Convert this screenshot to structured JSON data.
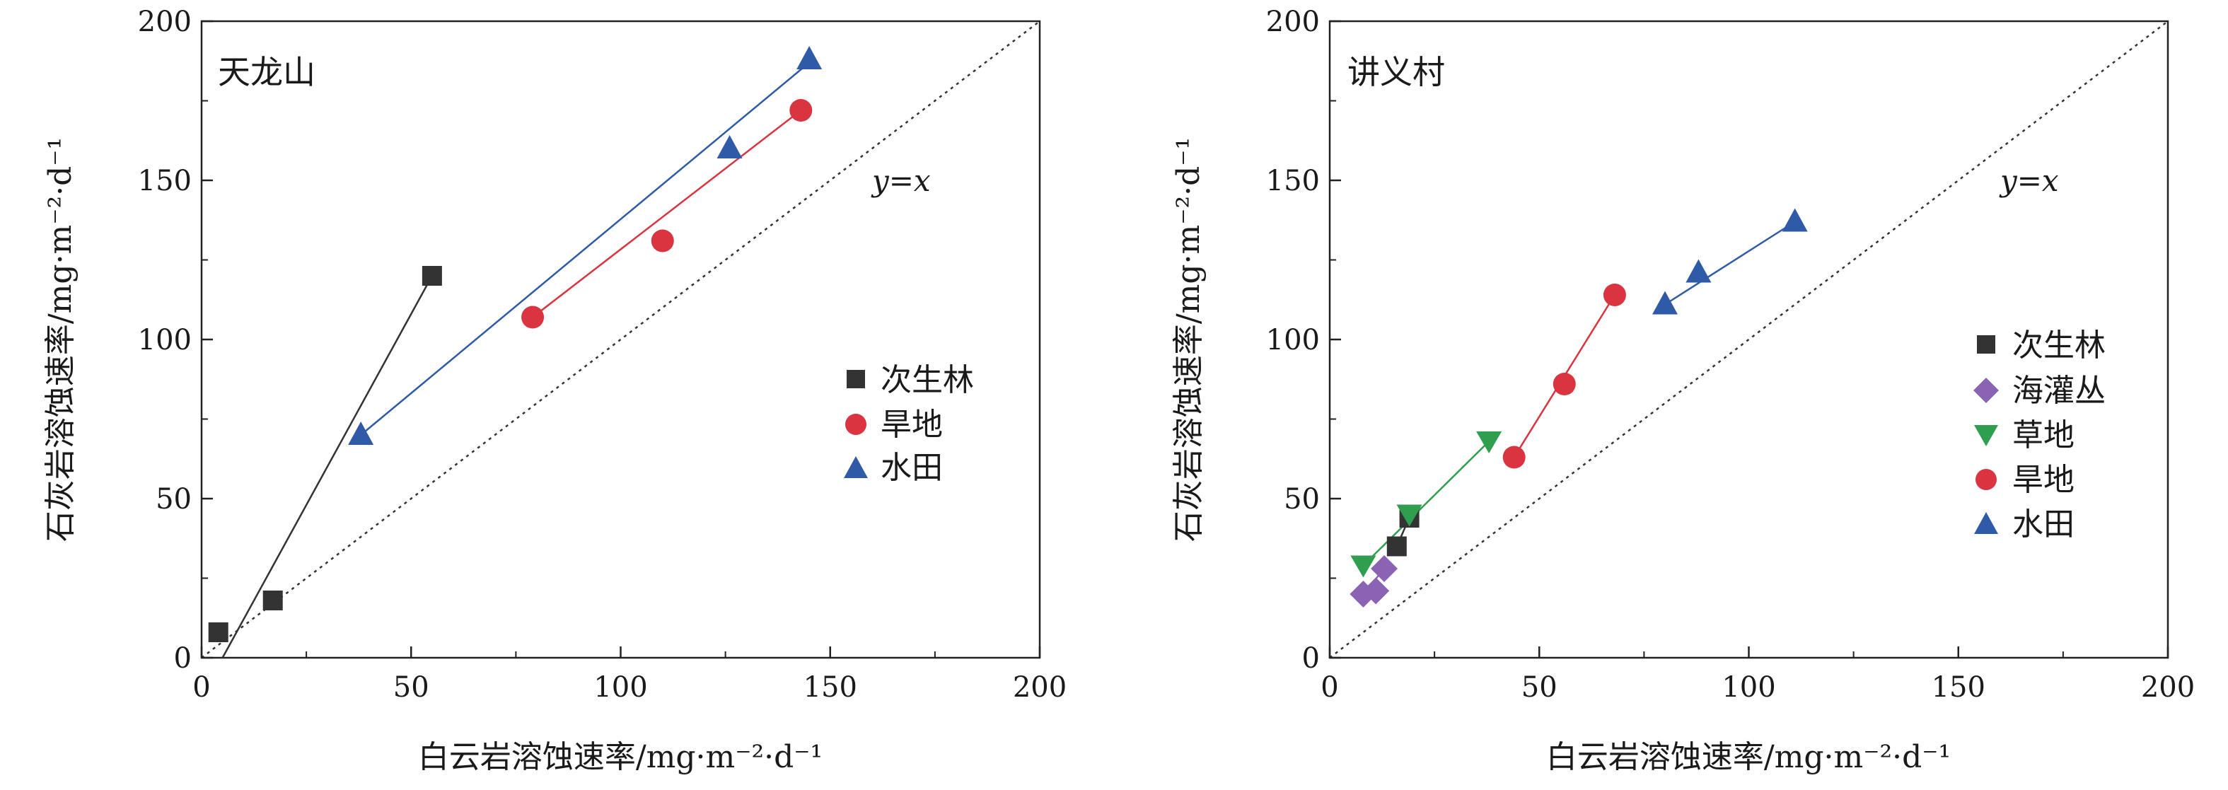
{
  "chart_data": [
    {
      "type": "scatter",
      "panel_title": "天龙山",
      "xlabel": "白云岩溶蚀速率/mg·m⁻²·d⁻¹",
      "ylabel": "石灰岩溶蚀速率/mg·m⁻²·d⁻¹",
      "xlim": [
        0,
        200
      ],
      "ylim": [
        0,
        200
      ],
      "xticks": [
        "0",
        "50",
        "100",
        "150",
        "200"
      ],
      "yticks": [
        "0",
        "50",
        "100",
        "150",
        "200"
      ],
      "reference_line": {
        "label": "y=x",
        "label_position": [
          160,
          150
        ]
      },
      "legend_position": "right-middle",
      "series": [
        {
          "name": "次生林",
          "marker": "square",
          "color": "#333333",
          "line_color": "#333333",
          "points": [
            [
              4,
              8
            ],
            [
              17,
              18
            ],
            [
              55,
              120
            ]
          ],
          "fit": [
            [
              5,
              0
            ],
            [
              55,
              120
            ]
          ]
        },
        {
          "name": "旱地",
          "marker": "circle",
          "color": "#d9343f",
          "line_color": "#d9343f",
          "points": [
            [
              79,
              107
            ],
            [
              110,
              131
            ],
            [
              143,
              172
            ]
          ],
          "fit": [
            [
              79,
              107
            ],
            [
              143,
              172
            ]
          ]
        },
        {
          "name": "水田",
          "marker": "triangle-up",
          "color": "#2e5aa8",
          "line_color": "#2e5aa8",
          "points": [
            [
              38,
              70
            ],
            [
              126,
              160
            ],
            [
              145,
              188
            ]
          ],
          "fit": [
            [
              38,
              70
            ],
            [
              145,
              187
            ]
          ]
        }
      ]
    },
    {
      "type": "scatter",
      "panel_title": "讲义村",
      "xlabel": "白云岩溶蚀速率/mg·m⁻²·d⁻¹",
      "ylabel": "石灰岩溶蚀速率/mg·m⁻²·d⁻¹",
      "xlim": [
        0,
        200
      ],
      "ylim": [
        0,
        200
      ],
      "xticks": [
        "0",
        "50",
        "100",
        "150",
        "200"
      ],
      "yticks": [
        "0",
        "50",
        "100",
        "150",
        "200"
      ],
      "reference_line": {
        "label": "y=x",
        "label_position": [
          160,
          150
        ]
      },
      "legend_position": "right-middle",
      "series": [
        {
          "name": "次生林",
          "marker": "square",
          "color": "#333333",
          "line_color": "#333333",
          "points": [
            [
              16,
              35
            ],
            [
              19,
              44
            ]
          ],
          "fit": [
            [
              16,
              35
            ],
            [
              19,
              44
            ]
          ]
        },
        {
          "name": "海灌丛",
          "marker": "diamond",
          "color": "#8a63b5",
          "line_color": "#8a63b5",
          "points": [
            [
              8,
              20
            ],
            [
              11,
              21
            ],
            [
              13,
              28
            ]
          ],
          "fit": [
            [
              8,
              20
            ],
            [
              13,
              28
            ]
          ]
        },
        {
          "name": "草地",
          "marker": "triangle-down",
          "color": "#2f9e4f",
          "line_color": "#2f9e4f",
          "points": [
            [
              8,
              29
            ],
            [
              19,
              45
            ],
            [
              38,
              68
            ]
          ],
          "fit": [
            [
              8,
              29
            ],
            [
              38,
              68
            ]
          ]
        },
        {
          "name": "旱地",
          "marker": "circle",
          "color": "#d9343f",
          "line_color": "#d9343f",
          "points": [
            [
              44,
              63
            ],
            [
              56,
              86
            ],
            [
              68,
              114
            ]
          ],
          "fit": [
            [
              44,
              63
            ],
            [
              68,
              114
            ]
          ]
        },
        {
          "name": "水田",
          "marker": "triangle-up",
          "color": "#2e5aa8",
          "line_color": "#2e5aa8",
          "points": [
            [
              80,
              111
            ],
            [
              88,
              121
            ],
            [
              111,
              137
            ]
          ],
          "fit": [
            [
              80,
              111
            ],
            [
              111,
              137
            ]
          ]
        }
      ]
    }
  ]
}
